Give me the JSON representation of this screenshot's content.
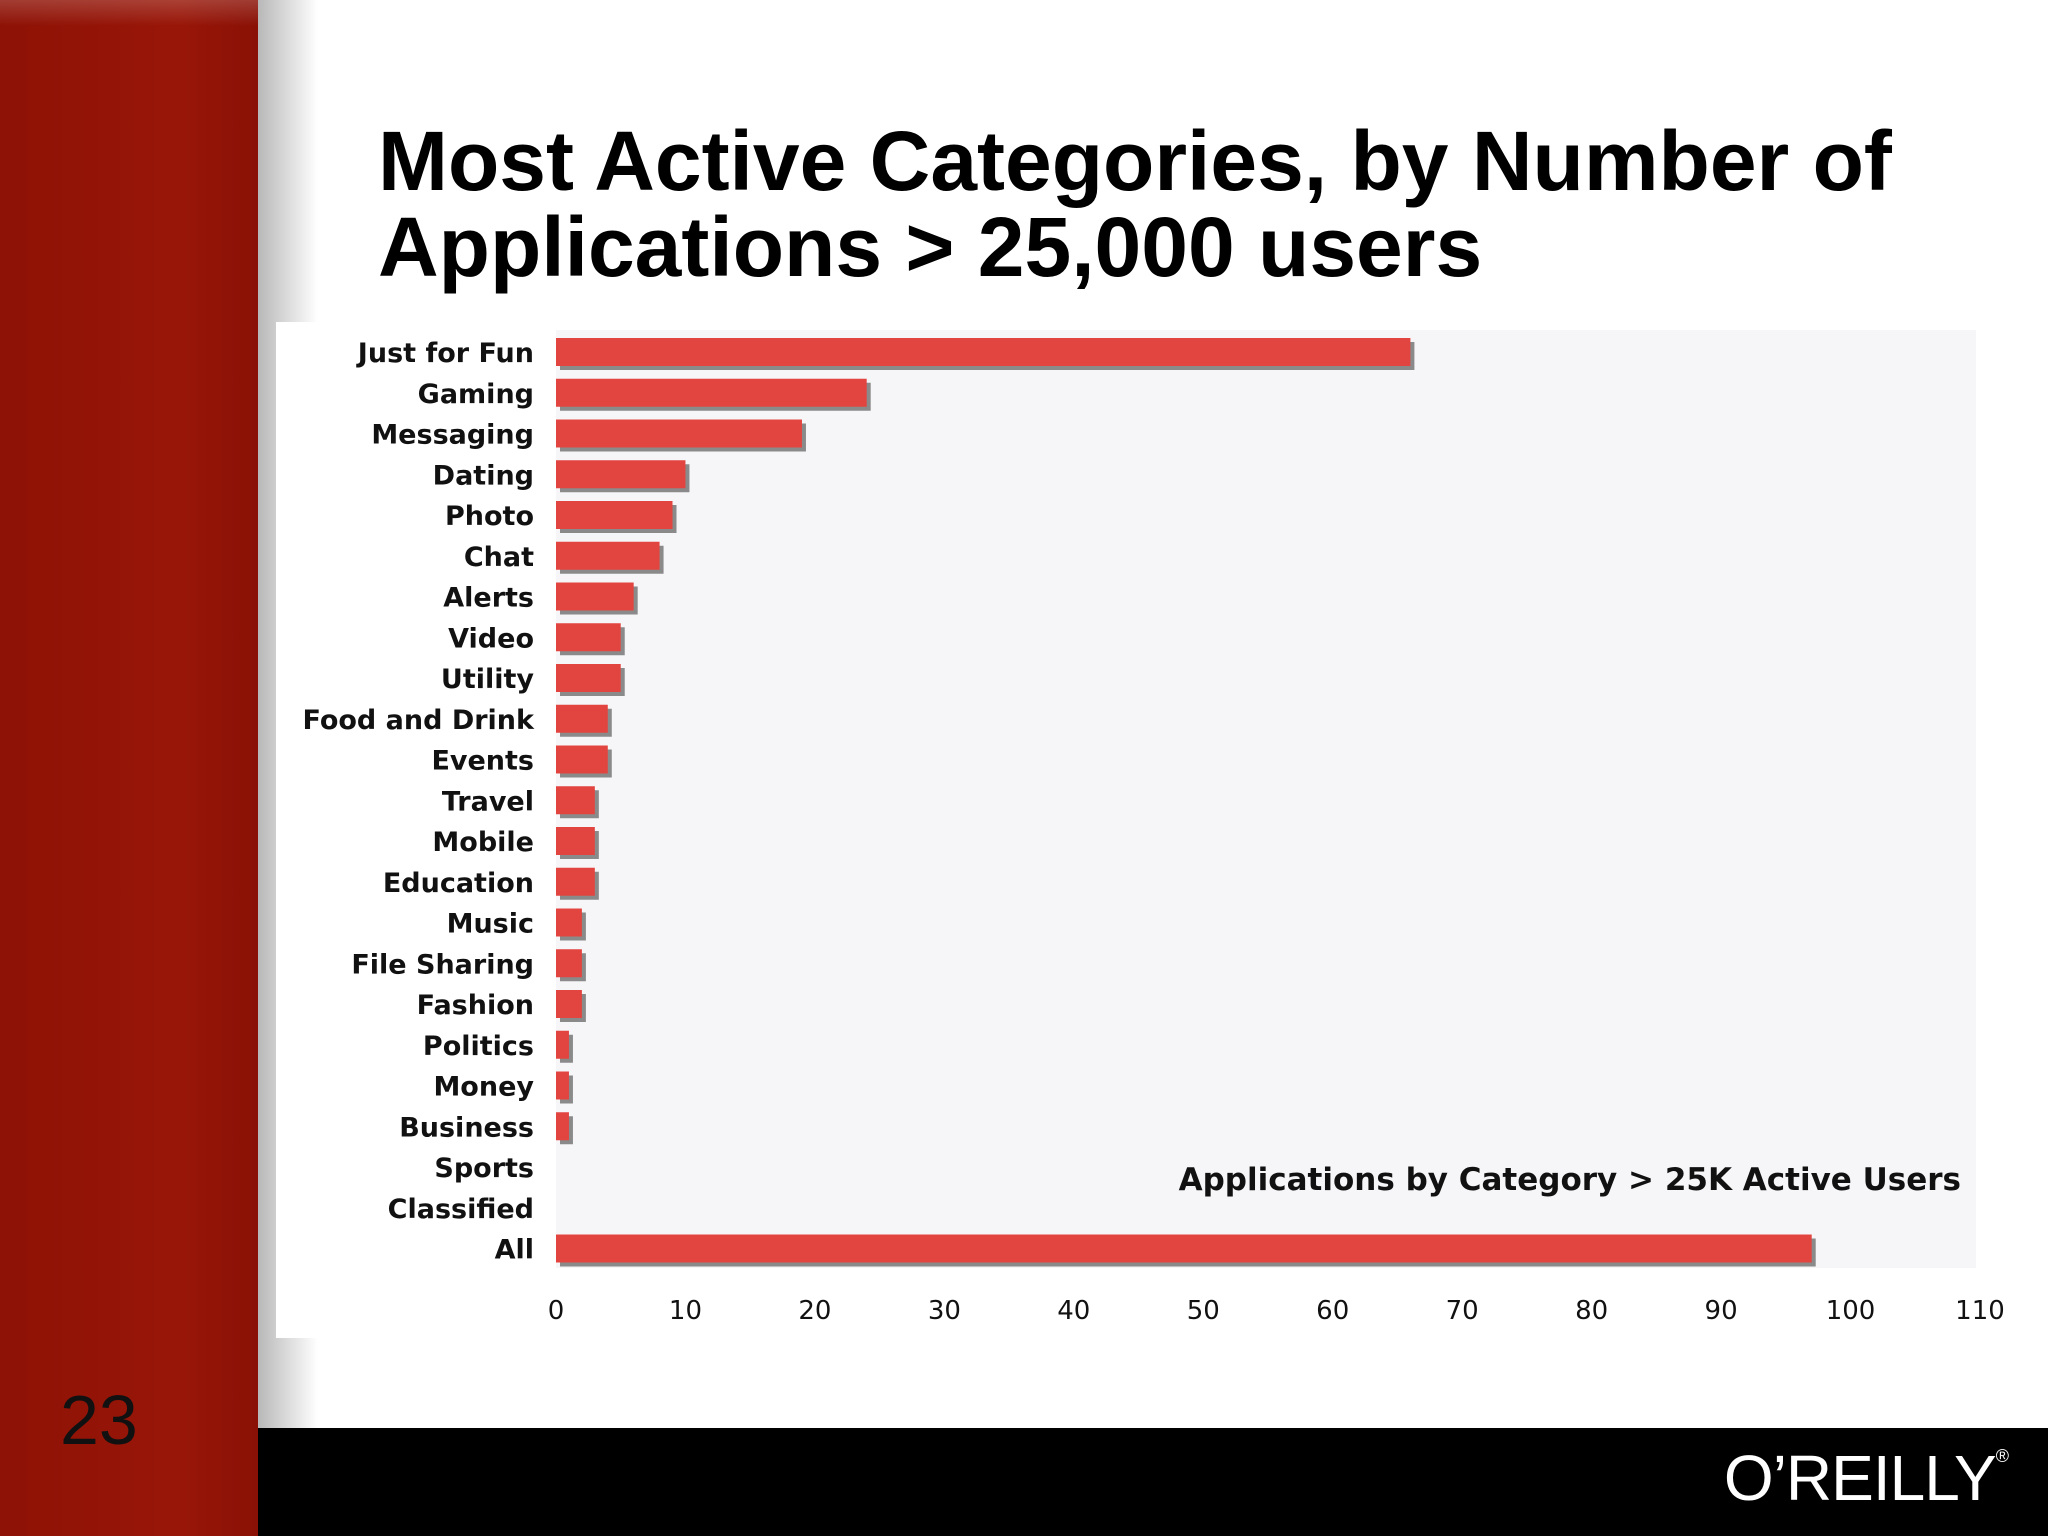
{
  "slide": {
    "title": "Most Active Categories, by Number of Applications > 25,000 users",
    "number": "23",
    "logo_text": "O’REILLY",
    "logo_mark": "®"
  },
  "colors": {
    "sidebar": "#951507",
    "bar": "#e24540",
    "bar_shadow": "#8a8a8a",
    "plot_background": "#f6f5f8",
    "footer": "#000000"
  },
  "chart_data": {
    "type": "bar",
    "orientation": "horizontal",
    "annotation": "Applications by Category > 25K Active Users",
    "categories": [
      "Just for Fun",
      "Gaming",
      "Messaging",
      "Dating",
      "Photo",
      "Chat",
      "Alerts",
      "Video",
      "Utility",
      "Food and Drink",
      "Events",
      "Travel",
      "Mobile",
      "Education",
      "Music",
      "File Sharing",
      "Fashion",
      "Politics",
      "Money",
      "Business",
      "Sports",
      "Classified",
      "All"
    ],
    "values": [
      66,
      24,
      19,
      10,
      9,
      8,
      6,
      5,
      5,
      4,
      4,
      3,
      3,
      3,
      2,
      2,
      2,
      1,
      1,
      1,
      0,
      0,
      97
    ],
    "xlim": [
      0,
      110
    ],
    "xticks": [
      0,
      10,
      20,
      30,
      40,
      50,
      60,
      70,
      80,
      90,
      100,
      110
    ],
    "grid": false,
    "legend": "none"
  }
}
